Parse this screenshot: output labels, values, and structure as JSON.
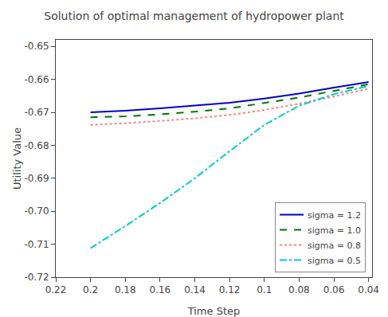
{
  "chart_data": {
    "type": "line",
    "title": "Solution of optimal management of hydropower plant",
    "xlabel": "Time Step",
    "ylabel": "Utility Value",
    "x": [
      0.2,
      0.18,
      0.16,
      0.14,
      0.12,
      0.1,
      0.08,
      0.06,
      0.04
    ],
    "series": [
      {
        "name": "sigma = 1.2",
        "color": "#0000cc",
        "line_style": "solid",
        "values": [
          -0.67,
          -0.6695,
          -0.6688,
          -0.668,
          -0.6671,
          -0.6658,
          -0.6643,
          -0.6625,
          -0.6608
        ]
      },
      {
        "name": "sigma = 1.0",
        "color": "#007700",
        "line_style": "dashed",
        "values": [
          -0.6715,
          -0.6712,
          -0.6706,
          -0.6698,
          -0.6688,
          -0.6672,
          -0.6655,
          -0.6635,
          -0.6615
        ]
      },
      {
        "name": "sigma = 0.8",
        "color": "#ff8080",
        "line_style": "dotted",
        "values": [
          -0.6738,
          -0.6733,
          -0.6726,
          -0.6718,
          -0.6708,
          -0.6693,
          -0.6674,
          -0.6652,
          -0.6628
        ]
      },
      {
        "name": "sigma = 0.5",
        "color": "#00cccc",
        "line_style": "dashdot",
        "values": [
          -0.7112,
          -0.7045,
          -0.6975,
          -0.69,
          -0.6818,
          -0.6738,
          -0.668,
          -0.6645,
          -0.662
        ]
      }
    ],
    "xlim": [
      0.22,
      0.038
    ],
    "ylim": [
      -0.72,
      -0.648
    ],
    "xticks": [
      0.22,
      0.2,
      0.18,
      0.16,
      0.14,
      0.12,
      0.1,
      0.08,
      0.06,
      0.04
    ],
    "yticks": [
      -0.72,
      -0.71,
      {
        "value": -0.7,
        "label": "-0.70"
      },
      -0.69,
      -0.68,
      -0.67,
      -0.66,
      -0.65
    ],
    "grid": false,
    "legend": "lower right"
  }
}
